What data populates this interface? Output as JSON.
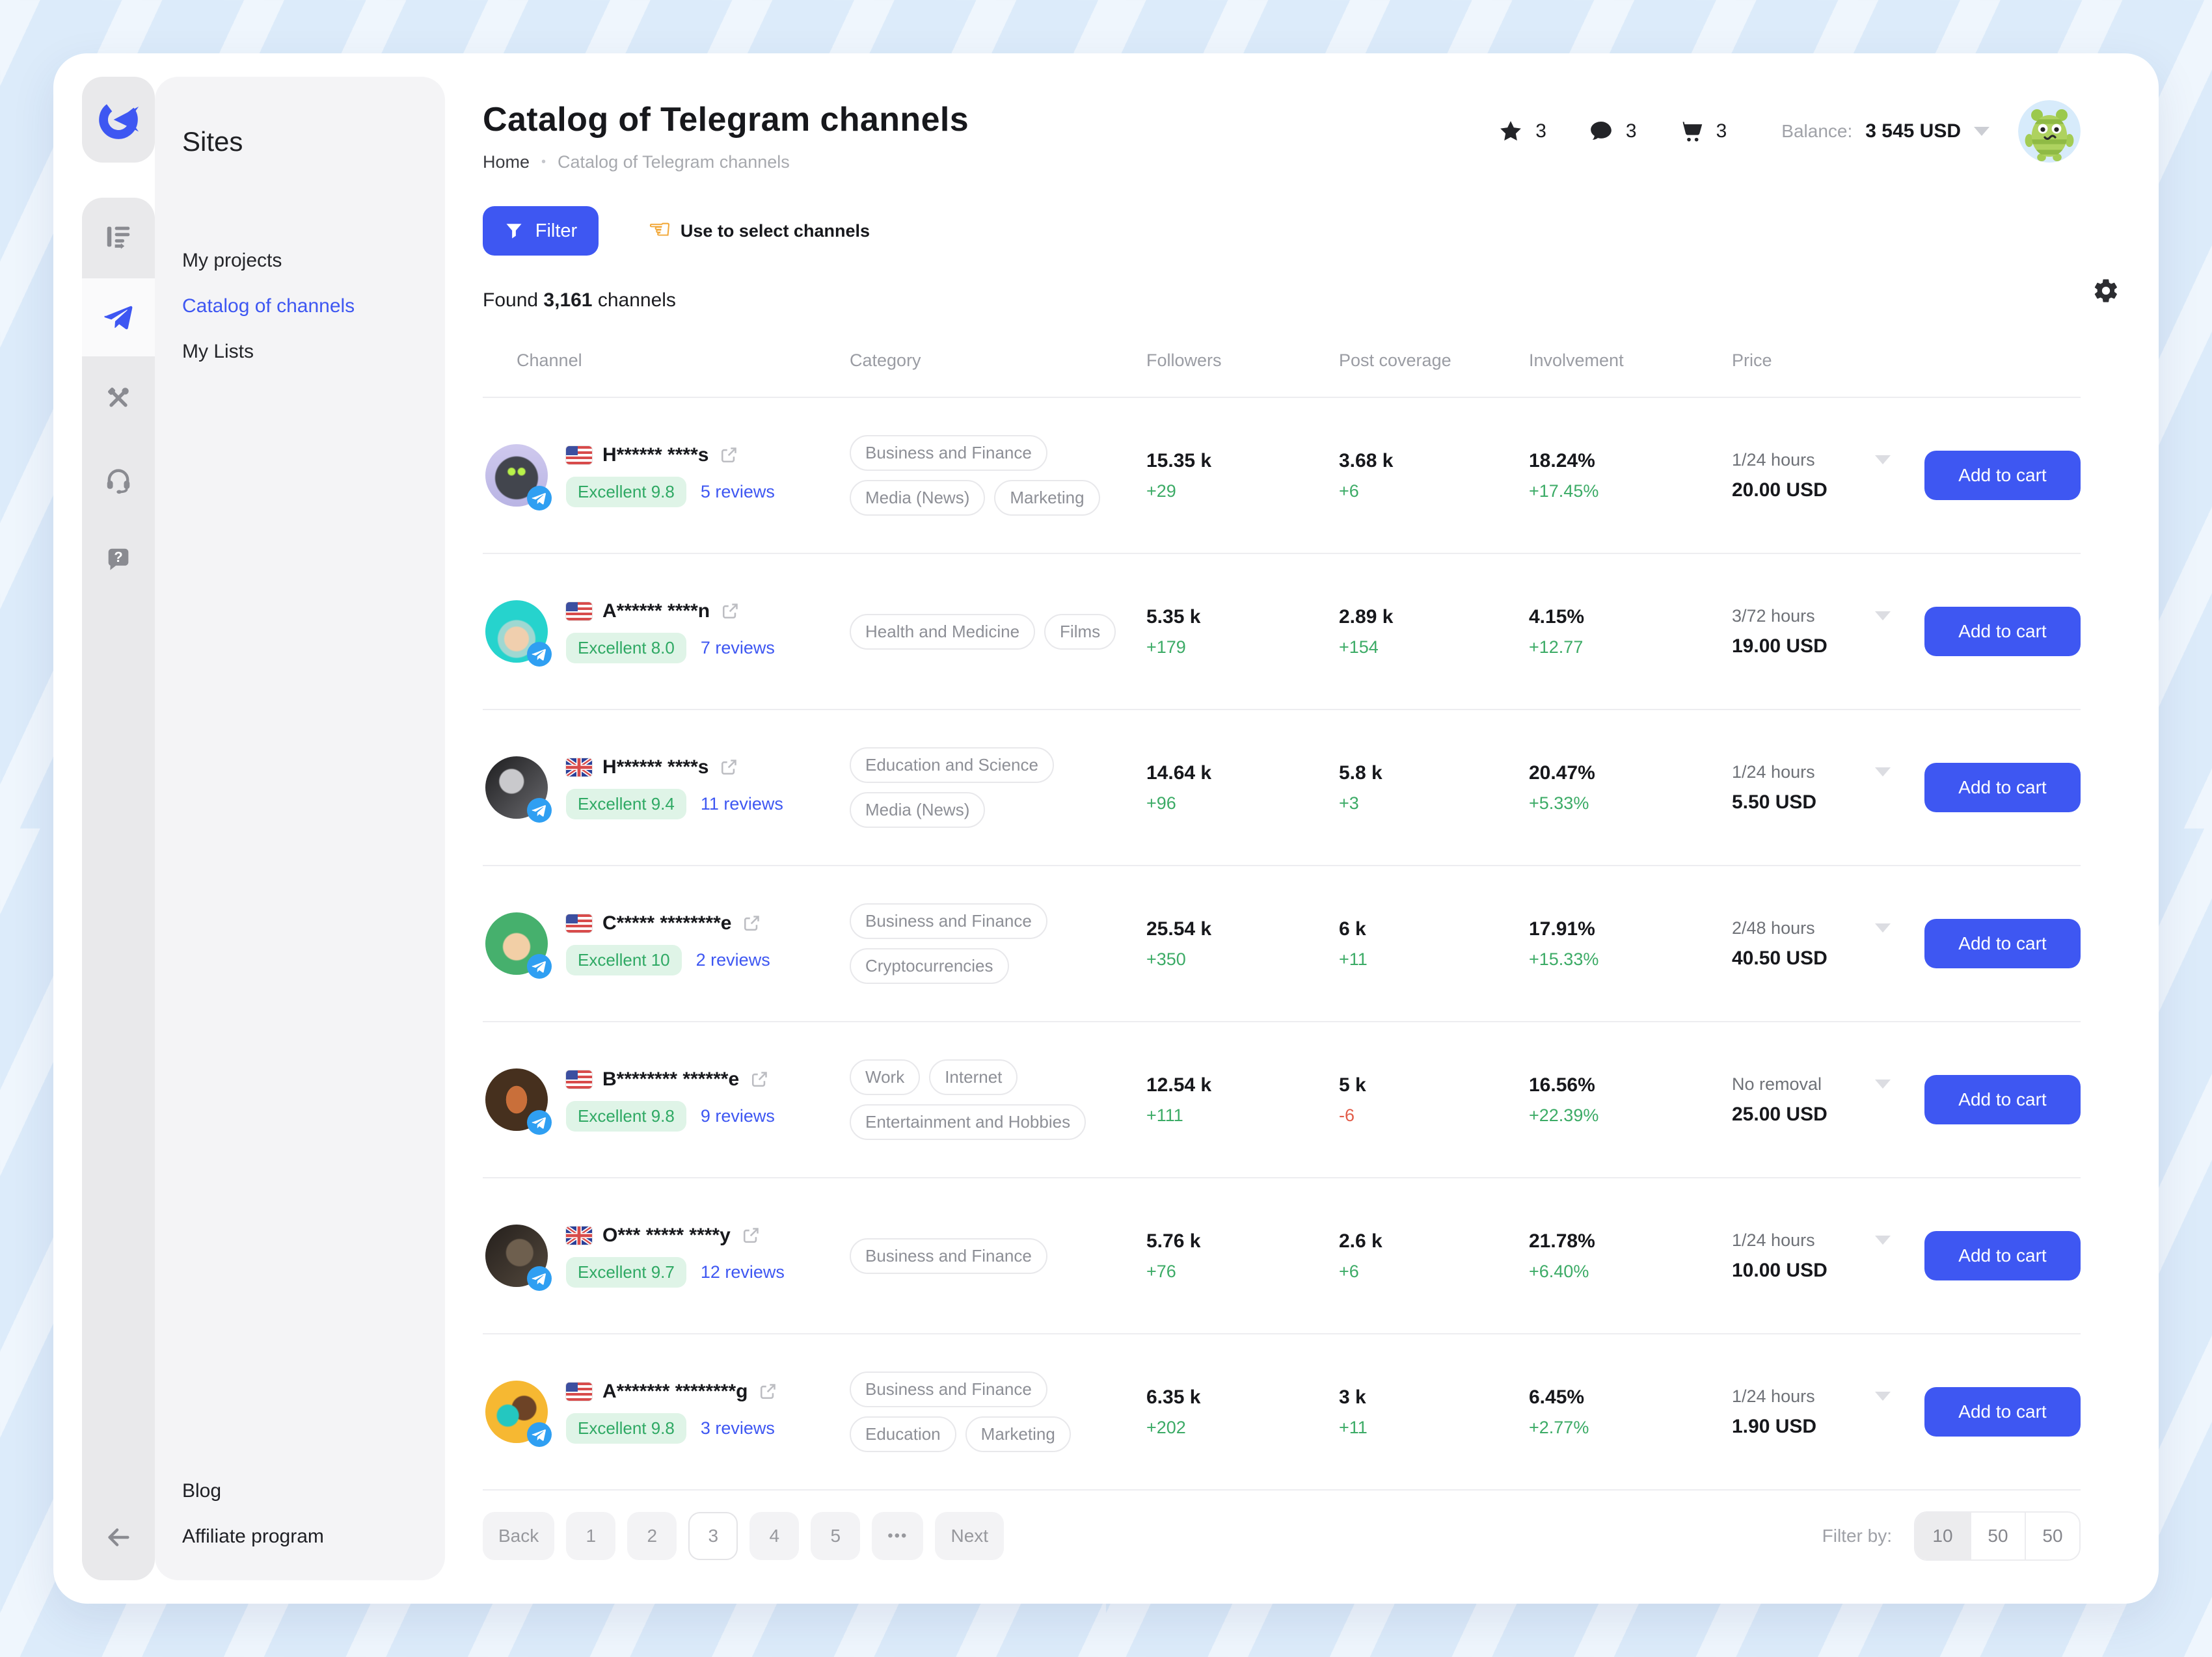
{
  "sidebar": {
    "title": "Sites",
    "items": [
      {
        "label": "My projects",
        "active": false
      },
      {
        "label": "Catalog of channels",
        "active": true
      },
      {
        "label": "My Lists",
        "active": false
      }
    ],
    "footer_items": [
      {
        "label": "Blog"
      },
      {
        "label": "Affiliate program"
      }
    ],
    "rail_icons": [
      "app-logo",
      "projects-icon",
      "telegram-channels-icon",
      "tools-icon",
      "support-headset-icon",
      "help-icon",
      "collapse-arrow-icon"
    ]
  },
  "header": {
    "title": "Catalog of Telegram channels",
    "breadcrumb_home": "Home",
    "breadcrumb_current": "Catalog of Telegram channels",
    "counters": [
      {
        "icon": "star",
        "value": "3"
      },
      {
        "icon": "chat",
        "value": "3"
      },
      {
        "icon": "cart",
        "value": "3"
      }
    ],
    "balance_label": "Balance:",
    "balance_value": "3 545 USD"
  },
  "toolbar": {
    "filter_label": "Filter",
    "hint_icon": "backhand-index-pointing-left",
    "hint": "Use to select channels",
    "found_prefix": "Found",
    "found_count": "3,161",
    "found_suffix": "channels"
  },
  "table": {
    "headers": [
      "Channel",
      "Category",
      "Followers",
      "Post coverage",
      "Involvement",
      "Price"
    ],
    "add_to_cart_label": "Add to cart",
    "rows": [
      {
        "flag": "us",
        "name": "H****** ****s",
        "rating": "Excellent 9.8",
        "reviews": "5 reviews",
        "categories": [
          "Business and Finance",
          "Media (News)",
          "Marketing"
        ],
        "followers": "15.35 k",
        "followers_delta": "+29",
        "coverage": "3.68 k",
        "coverage_delta": "+6",
        "involvement": "18.24%",
        "involvement_delta": "+17.45%",
        "price_term": "1/24 hours",
        "price": "20.00 USD",
        "avatar": "robot"
      },
      {
        "flag": "us",
        "name": "A****** ****n",
        "rating": "Excellent 8.0",
        "reviews": "7 reviews",
        "categories": [
          "Health and Medicine",
          "Films"
        ],
        "followers": "5.35 k",
        "followers_delta": "+179",
        "coverage": "2.89 k",
        "coverage_delta": "+154",
        "involvement": "4.15%",
        "involvement_delta": "+12.77",
        "price_term": "3/72 hours",
        "price": "19.00 USD",
        "avatar": "man-teal"
      },
      {
        "flag": "uk",
        "name": "H****** ****s",
        "rating": "Excellent 9.4",
        "reviews": "11 reviews",
        "categories": [
          "Education and Science",
          "Media (News)"
        ],
        "followers": "14.64 k",
        "followers_delta": "+96",
        "coverage": "5.8 k",
        "coverage_delta": "+3",
        "involvement": "20.47%",
        "involvement_delta": "+5.33%",
        "price_term": "1/24 hours",
        "price": "5.50 USD",
        "avatar": "portrait"
      },
      {
        "flag": "us",
        "name": "C***** ********e",
        "rating": "Excellent 10",
        "reviews": "2 reviews",
        "categories": [
          "Business and Finance",
          "Cryptocurrencies"
        ],
        "followers": "25.54 k",
        "followers_delta": "+350",
        "coverage": "6 k",
        "coverage_delta": "+11",
        "involvement": "17.91%",
        "involvement_delta": "+15.33%",
        "price_term": "2/48 hours",
        "price": "40.50 USD",
        "avatar": "man-green"
      },
      {
        "flag": "us",
        "name": "B******** ******e",
        "rating": "Excellent 9.8",
        "reviews": "9 reviews",
        "categories": [
          "Work",
          "Internet",
          "Entertainment and Hobbies"
        ],
        "followers": "12.54 k",
        "followers_delta": "+111",
        "coverage": "5 k",
        "coverage_delta": "-6",
        "involvement": "16.56%",
        "involvement_delta": "+22.39%",
        "price_term": "No removal",
        "price": "25.00 USD",
        "avatar": "plane-window"
      },
      {
        "flag": "uk",
        "name": "O*** ***** ****y",
        "rating": "Excellent 9.7",
        "reviews": "12 reviews",
        "categories": [
          "Business and Finance"
        ],
        "followers": "5.76 k",
        "followers_delta": "+76",
        "coverage": "2.6 k",
        "coverage_delta": "+6",
        "involvement": "21.78%",
        "involvement_delta": "+6.40%",
        "price_term": "1/24 hours",
        "price": "10.00 USD",
        "avatar": "dark"
      },
      {
        "flag": "us",
        "name": "A******* ********g",
        "rating": "Excellent 9.8",
        "reviews": "3 reviews",
        "categories": [
          "Business and Finance",
          "Education",
          "Marketing"
        ],
        "followers": "6.35 k",
        "followers_delta": "+202",
        "coverage": "3 k",
        "coverage_delta": "+11",
        "involvement": "6.45%",
        "involvement_delta": "+2.77%",
        "price_term": "1/24 hours",
        "price": "1.90 USD",
        "avatar": "yellow"
      }
    ]
  },
  "pagination": {
    "back": "Back",
    "pages": [
      "1",
      "2",
      "3",
      "4",
      "5"
    ],
    "active_page": "3",
    "ellipsis": "•••",
    "next": "Next",
    "filter_by_label": "Filter by:",
    "page_sizes": [
      "10",
      "50",
      "50"
    ],
    "active_size_index": 0
  }
}
